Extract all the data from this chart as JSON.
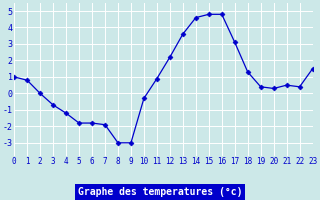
{
  "x": [
    0,
    1,
    2,
    3,
    4,
    5,
    6,
    7,
    8,
    9,
    10,
    11,
    12,
    13,
    14,
    15,
    16,
    17,
    18,
    19,
    20,
    21,
    22,
    23
  ],
  "y": [
    1.0,
    0.8,
    0.0,
    -0.7,
    -1.2,
    -1.8,
    -1.8,
    -1.9,
    -3.0,
    -3.0,
    -0.3,
    0.9,
    2.2,
    3.6,
    4.6,
    4.8,
    4.8,
    3.1,
    1.3,
    0.4,
    0.3,
    0.5,
    0.4,
    1.5
  ],
  "xlabel": "Graphe des temperatures (°c)",
  "ylim": [
    -3.8,
    5.5
  ],
  "xlim": [
    0,
    23
  ],
  "yticks": [
    -3,
    -2,
    -1,
    0,
    1,
    2,
    3,
    4,
    5
  ],
  "xtick_labels": [
    "0",
    "1",
    "2",
    "3",
    "4",
    "5",
    "6",
    "7",
    "8",
    "9",
    "10",
    "11",
    "12",
    "13",
    "14",
    "15",
    "16",
    "17",
    "18",
    "19",
    "20",
    "21",
    "22",
    "23"
  ],
  "line_color": "#0000cc",
  "marker": "D",
  "marker_size": 2.5,
  "bg_color": "#cce8e8",
  "grid_color": "#aacccc",
  "tick_label_color": "#0000cc",
  "xlabel_bg": "#0000cc",
  "xlabel_fg": "#ffffff",
  "xlabel_fontsize": 7,
  "tick_fontsize": 5.5
}
